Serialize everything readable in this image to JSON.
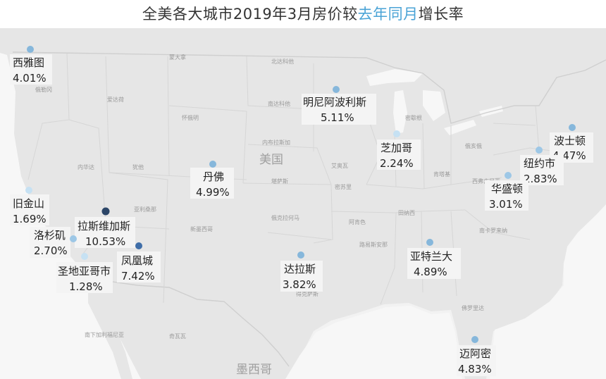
{
  "title": {
    "prefix": "全美各大城市2019年3月房价较",
    "highlight": "去年同月",
    "suffix": "增长率"
  },
  "colors": {
    "land": "#e6e6e6",
    "water": "#f7f7f7",
    "label_bg": "#f4f4f4",
    "dot_low": "#c6e1f3",
    "dot_mid": "#86b7db",
    "dot_high": "#3f6ea8",
    "dot_max": "#2c4668",
    "highlight": "#4aa3d6"
  },
  "map_labels": {
    "usa": "美国",
    "mexico": "墨西哥"
  },
  "cities": [
    {
      "id": "seattle",
      "name": "西雅图",
      "value": "4.01%",
      "growth": 4.01
    },
    {
      "id": "minneapolis",
      "name": "明尼阿波利斯",
      "value": "5.11%",
      "growth": 5.11
    },
    {
      "id": "boston",
      "name": "波士顿",
      "value": "4.47%",
      "growth": 4.47
    },
    {
      "id": "chicago",
      "name": "芝加哥",
      "value": "2.24%",
      "growth": 2.24
    },
    {
      "id": "newyork",
      "name": "纽约市",
      "value": "2.83%",
      "growth": 2.83
    },
    {
      "id": "denver",
      "name": "丹佛",
      "value": "4.99%",
      "growth": 4.99
    },
    {
      "id": "washington",
      "name": "华盛顿",
      "value": "3.01%",
      "growth": 3.01
    },
    {
      "id": "sanfrancisco",
      "name": "旧金山",
      "value": "1.69%",
      "growth": 1.69
    },
    {
      "id": "lasvegas",
      "name": "拉斯维加斯",
      "value": "10.53%",
      "growth": 10.53
    },
    {
      "id": "losangeles",
      "name": "洛杉矶",
      "value": "2.70%",
      "growth": 2.7
    },
    {
      "id": "phoenix",
      "name": "凤凰城",
      "value": "7.42%",
      "growth": 7.42
    },
    {
      "id": "sandiego",
      "name": "圣地亚哥市",
      "value": "1.28%",
      "growth": 1.28
    },
    {
      "id": "dallas",
      "name": "达拉斯",
      "value": "3.82%",
      "growth": 3.82
    },
    {
      "id": "atlanta",
      "name": "亚特兰大",
      "value": "4.89%",
      "growth": 4.89
    },
    {
      "id": "miami",
      "name": "迈阿密",
      "value": "4.83%",
      "growth": 4.83
    }
  ]
}
